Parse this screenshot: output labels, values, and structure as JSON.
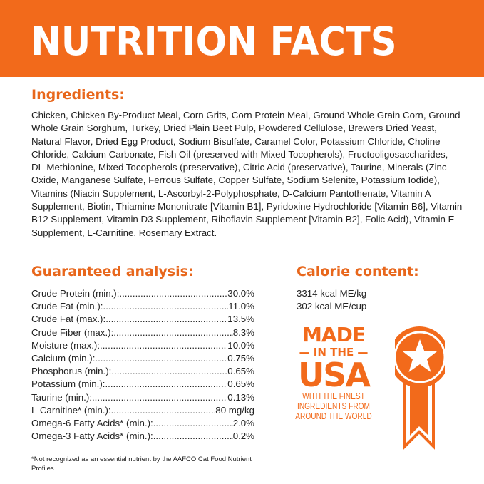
{
  "banner": {
    "title": "NUTRITION FACTS"
  },
  "ingredients": {
    "heading": "Ingredients:",
    "text": "Chicken, Chicken By-Product Meal, Corn Grits, Corn Protein Meal, Ground Whole Grain Corn, Ground Whole Grain Sorghum, Turkey, Dried Plain Beet Pulp, Powdered Cellulose, Brewers Dried Yeast, Natural Flavor, Dried Egg Product, Sodium Bisulfate, Caramel Color, Potassium Chloride, Choline Chloride, Calcium Carbonate, Fish Oil (preserved with Mixed Tocopherols), Fructooligosaccharides, DL-Methionine, Mixed Tocopherols (preservative), Citric Acid (preservative), Taurine, Minerals (Zinc Oxide, Manganese Sulfate, Ferrous Sulfate, Copper Sulfate, Sodium Selenite, Potassium Iodide), Vitamins (Niacin Supplement, L-Ascorbyl-2-Polyphosphate, D-Calcium Pantothenate, Vitamin A Supplement, Biotin, Thiamine Mononitrate [Vitamin B1], Pyridoxine Hydrochloride [Vitamin B6], Vitamin B12 Supplement, Vitamin D3 Supplement, Riboflavin Supplement [Vitamin B2], Folic Acid), Vitamin E Supplement, L-Carnitine, Rosemary Extract."
  },
  "analysis": {
    "heading": "Guaranteed analysis:",
    "rows": [
      {
        "label": "Crude Protein (min.):",
        "value": "30.0%"
      },
      {
        "label": "Crude Fat (min.):",
        "value": "11.0%"
      },
      {
        "label": "Crude Fat (max.):",
        "value": "13.5%"
      },
      {
        "label": "Crude Fiber (max.):",
        "value": "8.3%"
      },
      {
        "label": "Moisture (max.):",
        "value": "10.0%"
      },
      {
        "label": "Calcium (min.):",
        "value": "0.75%"
      },
      {
        "label": "Phosphorus (min.):",
        "value": "0.65%"
      },
      {
        "label": "Potassium (min.):",
        "value": "0.65%"
      },
      {
        "label": "Taurine (min.):",
        "value": "0.13%"
      },
      {
        "label": "L-Carnitine* (min.):",
        "value": "80 mg/kg"
      },
      {
        "label": "Omega-6 Fatty Acids* (min.):",
        "value": "2.0%"
      },
      {
        "label": "Omega-3 Fatty Acids* (min.):",
        "value": "0.2%"
      }
    ],
    "footnote": "*Not recognized as an essential nutrient by the AAFCO Cat Food Nutrient Profiles."
  },
  "calorie": {
    "heading": "Calorie content:",
    "lines": [
      "3314 kcal ME/kg",
      "302 kcal ME/cup"
    ]
  },
  "badge": {
    "made": "MADE",
    "in_the": "IN THE",
    "usa": "USA",
    "sub": [
      "WITH THE FINEST",
      "INGREDIENTS FROM",
      "AROUND THE WORLD"
    ],
    "icon": "star-medal-icon"
  },
  "colors": {
    "accent": "#f26a1b",
    "heading": "#e8671c"
  }
}
